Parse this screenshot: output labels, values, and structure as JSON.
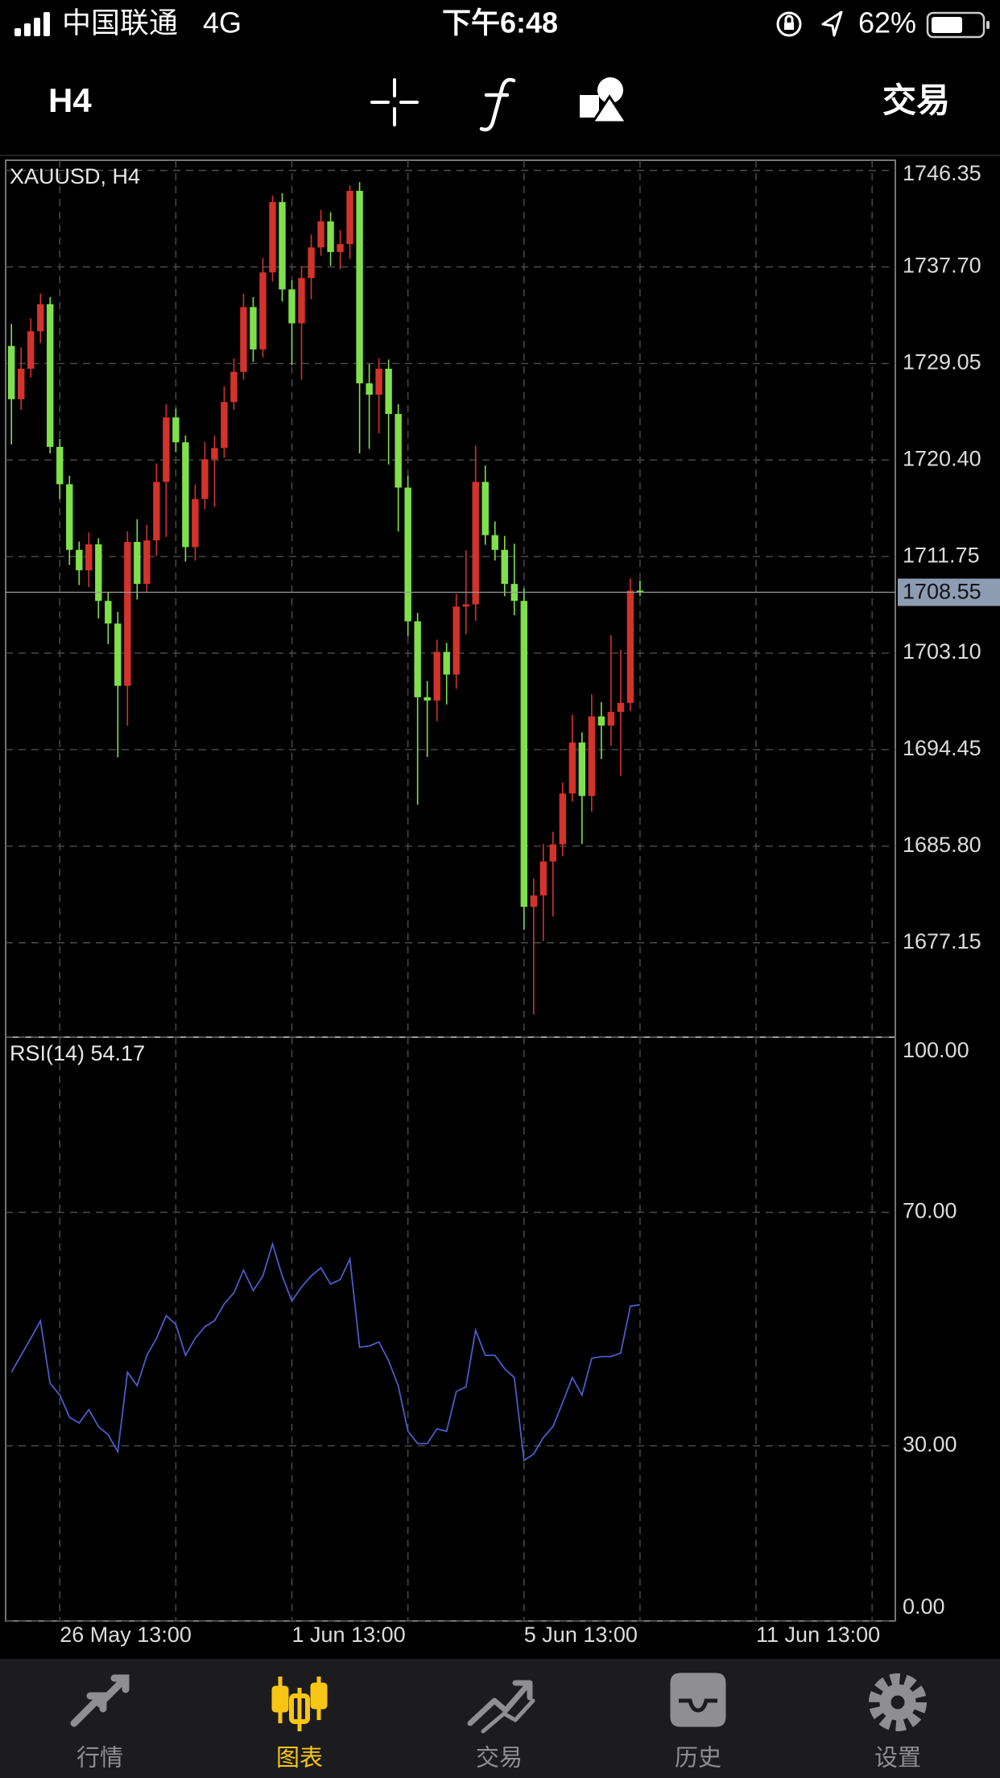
{
  "status_bar": {
    "carrier": "中国联通",
    "network": "4G",
    "time": "下午6:48",
    "battery": "62%"
  },
  "toolbar": {
    "timeframe": "H4",
    "trade": "交易"
  },
  "chart_data": [
    {
      "type": "candlestick",
      "title": "XAUUSD, H4",
      "open": [
        1730.62,
        1725.85,
        1728.58,
        1731.94,
        1734.37,
        1721.58,
        1718.23,
        1712.35,
        1710.52,
        1712.85,
        1707.78,
        1705.75,
        1700.17,
        1713.06,
        1709.3,
        1713.2,
        1718.44,
        1724.22,
        1721.99,
        1712.6,
        1716.91,
        1720.47,
        1721.48,
        1725.6,
        1728.3,
        1734.1,
        1730.31,
        1737.21,
        1743.51,
        1735.69,
        1732.65,
        1736.71,
        1739.45,
        1741.78,
        1739.04,
        1739.75,
        1744.52,
        1727.27,
        1726.25,
        1728.58,
        1724.53,
        1717.93,
        1705.95,
        1699.15,
        1698.85,
        1703.21,
        1701.18,
        1707.27,
        1707.47,
        1718.44,
        1713.67,
        1712.35,
        1709.3,
        1707.78,
        1680.37,
        1681.39,
        1684.43,
        1685.96,
        1690.52,
        1695.09,
        1690.3,
        1697.43,
        1696.61,
        1697.83,
        1698.64,
        1708.7
      ],
      "high": [
        1732.6,
        1730.5,
        1733.1,
        1735.3,
        1735.0,
        1722.3,
        1719.0,
        1713.1,
        1713.9,
        1713.4,
        1708.6,
        1706.8,
        1714.0,
        1715.1,
        1714.6,
        1720.1,
        1725.4,
        1725.0,
        1722.6,
        1718.2,
        1722.0,
        1722.6,
        1727.0,
        1729.5,
        1735.3,
        1735.0,
        1738.5,
        1744.1,
        1744.3,
        1736.5,
        1737.8,
        1740.6,
        1742.8,
        1742.6,
        1741.0,
        1745.0,
        1745.3,
        1729.0,
        1729.5,
        1729.4,
        1725.4,
        1719.0,
        1706.7,
        1700.6,
        1704.3,
        1704.0,
        1708.4,
        1712.3,
        1721.69,
        1719.9,
        1714.9,
        1713.6,
        1712.9,
        1708.9,
        1682.9,
        1686.0,
        1687.1,
        1691.5,
        1697.6,
        1696.0,
        1699.4,
        1698.7,
        1704.7,
        1703.4,
        1709.8,
        1709.6
      ],
      "low": [
        1721.8,
        1724.9,
        1727.8,
        1730.9,
        1721.0,
        1716.9,
        1711.0,
        1709.2,
        1709.0,
        1706.2,
        1703.9,
        1693.77,
        1696.6,
        1707.9,
        1708.6,
        1711.8,
        1713.5,
        1721.1,
        1711.3,
        1711.4,
        1716.0,
        1716.2,
        1720.6,
        1724.9,
        1727.6,
        1729.2,
        1729.6,
        1736.4,
        1734.6,
        1728.9,
        1727.6,
        1734.8,
        1738.7,
        1737.8,
        1737.5,
        1738.4,
        1721.0,
        1721.4,
        1722.8,
        1720.0,
        1714.0,
        1704.6,
        1689.51,
        1693.8,
        1697.0,
        1698.5,
        1699.9,
        1704.8,
        1706.0,
        1712.8,
        1711.4,
        1708.2,
        1706.5,
        1678.3,
        1670.73,
        1677.3,
        1679.5,
        1684.9,
        1689.8,
        1686.0,
        1688.9,
        1693.6,
        1694.8,
        1692.1,
        1697.9,
        1708.2
      ],
      "close": [
        1725.85,
        1728.58,
        1731.94,
        1734.37,
        1721.58,
        1718.23,
        1712.35,
        1710.52,
        1712.85,
        1707.78,
        1705.75,
        1700.17,
        1713.06,
        1709.3,
        1713.2,
        1718.44,
        1724.22,
        1721.99,
        1712.6,
        1716.91,
        1720.47,
        1721.48,
        1725.6,
        1728.3,
        1734.1,
        1730.31,
        1737.21,
        1743.51,
        1735.69,
        1732.65,
        1736.71,
        1739.45,
        1741.78,
        1739.04,
        1739.75,
        1744.52,
        1727.27,
        1726.25,
        1728.58,
        1724.53,
        1717.93,
        1705.95,
        1699.15,
        1698.85,
        1703.21,
        1701.18,
        1707.27,
        1707.47,
        1718.44,
        1713.67,
        1712.35,
        1709.3,
        1707.78,
        1680.37,
        1681.39,
        1684.43,
        1685.96,
        1690.52,
        1695.09,
        1690.3,
        1697.43,
        1696.61,
        1697.83,
        1698.64,
        1708.7,
        1708.55
      ],
      "up_color": "#d2332b",
      "down_color": "#7fe04c",
      "current_price": 1708.55,
      "ylim": [
        1668.69,
        1747.26
      ],
      "yticks": [
        1746.35,
        {
          "value": 1737.7,
          "label": "1737.70"
        },
        1729.05,
        {
          "value": 1720.4,
          "label": "1720.40"
        },
        1711.75,
        {
          "value": 1703.1,
          "label": "1703.10"
        },
        1694.45,
        {
          "value": 1685.8,
          "label": "1685.80"
        },
        1677.15
      ],
      "xlim": [
        -0.6,
        91.4
      ],
      "grid": true
    },
    {
      "type": "line",
      "title": "RSI(14) 54.17",
      "color": "#4a5cc9",
      "values": [
        42.6,
        45.5,
        48.4,
        51.4,
        40.7,
        38.7,
        34.9,
        33.9,
        36.2,
        33.3,
        31.9,
        29.0,
        42.6,
        40.3,
        45.5,
        48.4,
        52.3,
        50.8,
        45.5,
        48.4,
        50.4,
        51.4,
        54.3,
        56.2,
        60.1,
        56.6,
        59.1,
        64.6,
        59.1,
        54.8,
        57.2,
        59.1,
        60.5,
        57.7,
        58.5,
        62.0,
        46.9,
        47.1,
        47.8,
        44.6,
        40.3,
        32.5,
        30.4,
        30.4,
        32.9,
        32.5,
        39.3,
        40.1,
        49.8,
        45.5,
        45.5,
        43.2,
        41.7,
        27.5,
        28.6,
        31.4,
        33.3,
        37.4,
        41.7,
        38.7,
        45.0,
        45.3,
        45.3,
        45.9,
        53.9,
        54.17
      ],
      "ylim": [
        0,
        100
      ],
      "yticks": [
        {
          "value": 100,
          "label": "100.00"
        },
        {
          "value": 70,
          "label": "70.00"
        },
        {
          "value": 30,
          "label": "30.00"
        },
        {
          "value": 0,
          "label": "0.00"
        }
      ],
      "xlim": [
        -0.6,
        91.4
      ],
      "xticks": [
        {
          "value": 5,
          "label": "26 May 13:00"
        },
        {
          "value": 29,
          "label": "1 Jun 13:00"
        },
        {
          "value": 53,
          "label": "5 Jun 13:00"
        },
        {
          "value": 77,
          "label": "11 Jun 13:00"
        }
      ],
      "grid": true
    }
  ],
  "tab_bar": {
    "tabs": [
      "行情",
      "图表",
      "交易",
      "历史",
      "设置"
    ],
    "active": 1
  }
}
